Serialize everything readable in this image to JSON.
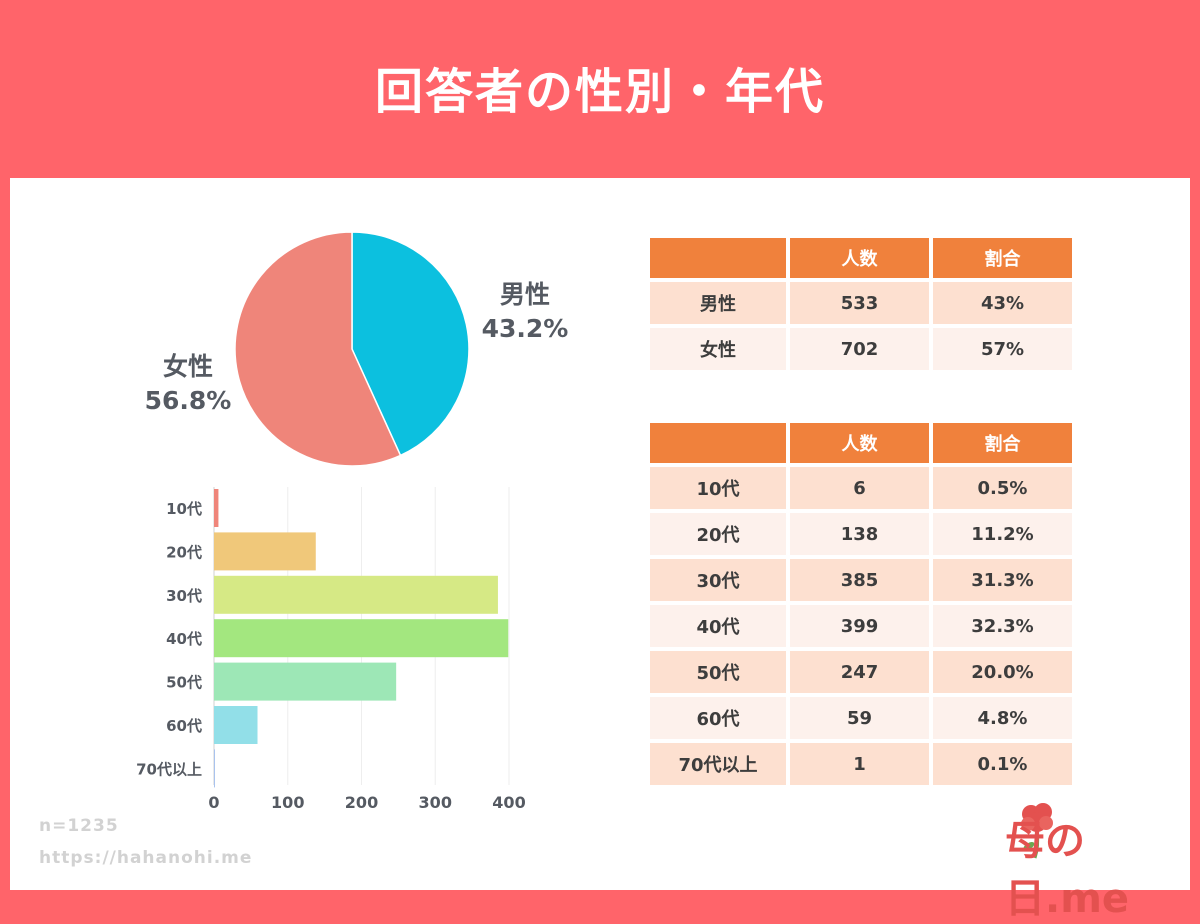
{
  "title": "回答者の性別・年代",
  "chart_data": [
    {
      "type": "pie",
      "slices": [
        {
          "label": "男性",
          "value": 43.2,
          "display": "43.2%",
          "color": "#0cc0df"
        },
        {
          "label": "女性",
          "value": 56.8,
          "display": "56.8%",
          "color": "#ef857a"
        }
      ]
    },
    {
      "type": "bar",
      "orientation": "horizontal",
      "categories": [
        "10代",
        "20代",
        "30代",
        "40代",
        "50代",
        "60代",
        "70代以上"
      ],
      "values": [
        6,
        138,
        385,
        399,
        247,
        59,
        1
      ],
      "colors": [
        "#ef857a",
        "#f0c87a",
        "#d6e985",
        "#a3e77f",
        "#9de7b6",
        "#92dfe8",
        "#a9c3ee"
      ],
      "xticks": [
        0,
        100,
        200,
        300,
        400
      ],
      "xlim": [
        0,
        400
      ],
      "grid": true
    }
  ],
  "gender_table": {
    "headers": [
      "",
      "人数",
      "割合"
    ],
    "rows": [
      [
        "男性",
        "533",
        "43%"
      ],
      [
        "女性",
        "702",
        "57%"
      ]
    ]
  },
  "age_table": {
    "headers": [
      "",
      "人数",
      "割合"
    ],
    "rows": [
      [
        "10代",
        "6",
        "0.5%"
      ],
      [
        "20代",
        "138",
        "11.2%"
      ],
      [
        "30代",
        "385",
        "31.3%"
      ],
      [
        "40代",
        "399",
        "32.3%"
      ],
      [
        "50代",
        "247",
        "20.0%"
      ],
      [
        "60代",
        "59",
        "4.8%"
      ],
      [
        "70代以上",
        "1",
        "0.1%"
      ]
    ]
  },
  "footer": {
    "sample": "n=1235",
    "url": "https://hahanohi.me"
  },
  "logo": {
    "text": "母の日.me"
  }
}
